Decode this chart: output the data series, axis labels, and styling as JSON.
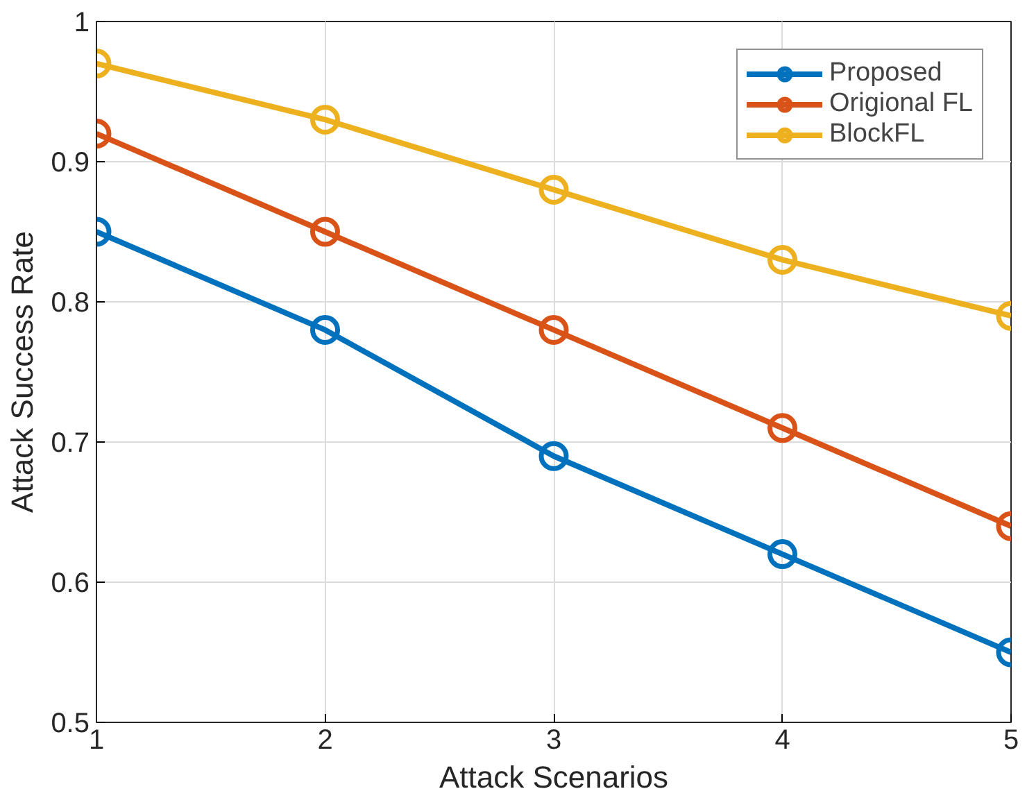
{
  "chart_data": {
    "type": "line",
    "xlabel": "Attack Scenarios",
    "ylabel": "Attack Success Rate",
    "x": [
      1,
      2,
      3,
      4,
      5
    ],
    "series": [
      {
        "name": "Proposed",
        "color": "#0072bd",
        "values": [
          0.85,
          0.78,
          0.69,
          0.62,
          0.55
        ]
      },
      {
        "name": "Origional FL",
        "color": "#d95319",
        "values": [
          0.92,
          0.85,
          0.78,
          0.71,
          0.64
        ]
      },
      {
        "name": "BlockFL",
        "color": "#edb120",
        "values": [
          0.97,
          0.93,
          0.88,
          0.83,
          0.79
        ]
      }
    ],
    "xlim": [
      1,
      5
    ],
    "ylim": [
      0.5,
      1
    ],
    "xticks": [
      1,
      2,
      3,
      4,
      5
    ],
    "yticks": [
      0.5,
      0.6,
      0.7,
      0.8,
      0.9,
      {
        "value": 1,
        "label": "1"
      }
    ],
    "grid": true,
    "legend": "top right",
    "marker": "circle",
    "line_style": "solid"
  }
}
